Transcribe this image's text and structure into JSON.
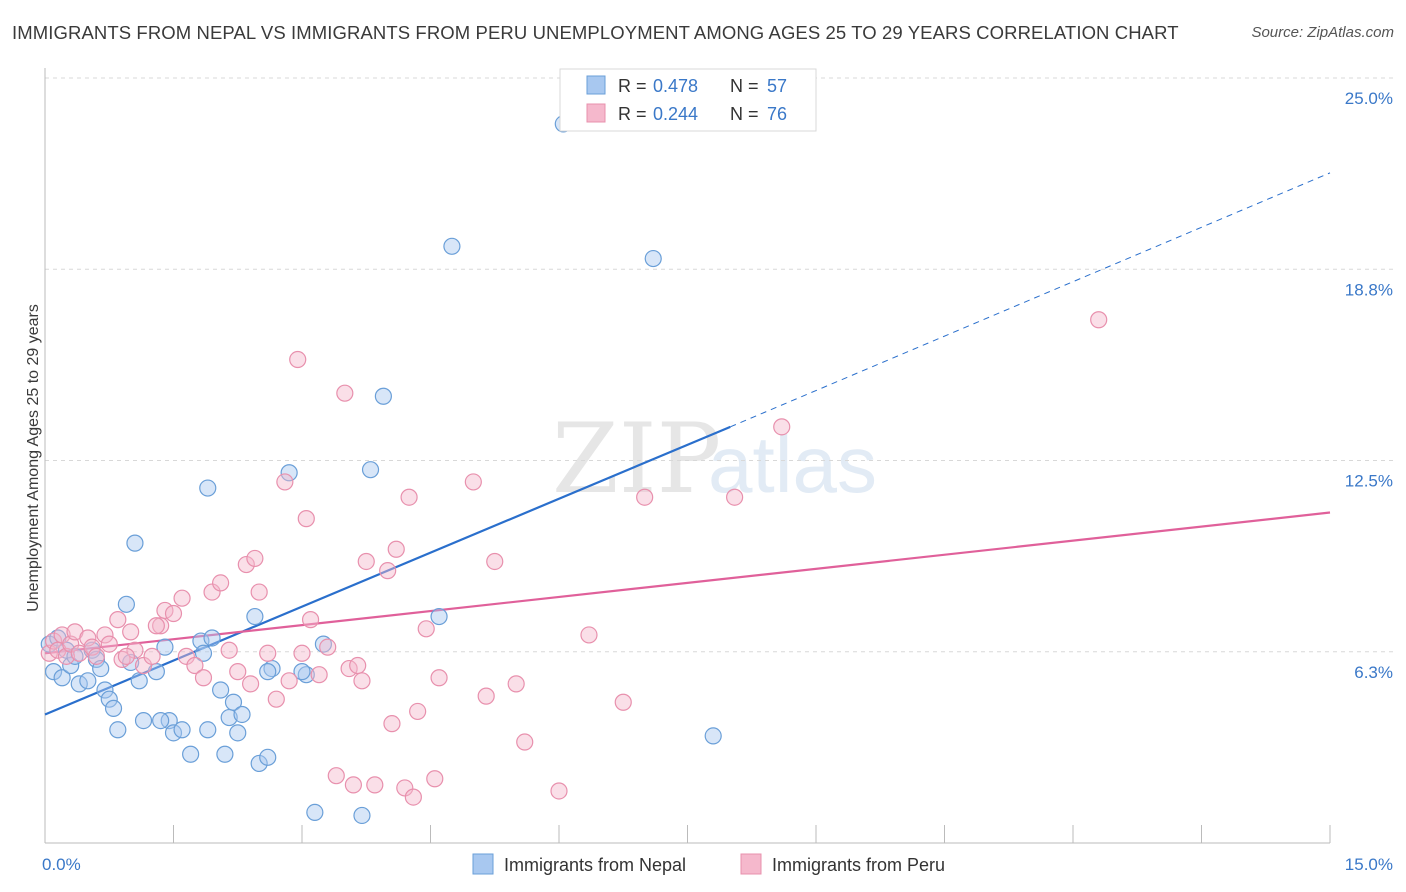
{
  "title": "IMMIGRANTS FROM NEPAL VS IMMIGRANTS FROM PERU UNEMPLOYMENT AMONG AGES 25 TO 29 YEARS CORRELATION CHART",
  "source": "Source: ZipAtlas.com",
  "watermark": {
    "zip": "ZIP",
    "atlas": "atlas"
  },
  "colors": {
    "nepal_fill": "#a8c8f0",
    "nepal_stroke": "#6a9fd8",
    "nepal_line": "#2a6fcc",
    "peru_fill": "#f5b8cc",
    "peru_stroke": "#e890ad",
    "peru_line": "#e0609a",
    "axis_text": "#3a78c8",
    "grid": "#d8d8d8"
  },
  "legend": {
    "rows": [
      {
        "r_label": "R = ",
        "r_value": "0.478",
        "n_label": "N = ",
        "n_value": "57"
      },
      {
        "r_label": "R = ",
        "r_value": "0.244",
        "n_label": "N = ",
        "n_value": "76"
      }
    ]
  },
  "chart_data": {
    "type": "scatter",
    "title": "IMMIGRANTS FROM NEPAL VS IMMIGRANTS FROM PERU UNEMPLOYMENT AMONG AGES 25 TO 29 YEARS CORRELATION CHART",
    "xlabel": "",
    "ylabel": "Unemployment Among Ages 25 to 29 years",
    "xlim": [
      0,
      15
    ],
    "ylim": [
      0,
      25
    ],
    "x_tick_labels": [
      "0.0%",
      "15.0%"
    ],
    "y_ticks": [
      6.25,
      12.5,
      18.75,
      25.0
    ],
    "y_tick_labels": [
      "6.3%",
      "12.5%",
      "18.8%",
      "25.0%"
    ],
    "grid": true,
    "legend_position": "top-center",
    "series": [
      {
        "name": "Immigrants from Nepal",
        "r": 0.478,
        "n": 57,
        "trend": {
          "x0": 0.0,
          "y0": 4.2,
          "x1": 8.0,
          "y1": 13.6,
          "dash_to_x": 15.0,
          "dash_to_y": 21.9
        },
        "points": [
          [
            0.05,
            6.5
          ],
          [
            0.1,
            5.6
          ],
          [
            0.15,
            6.7
          ],
          [
            0.2,
            5.4
          ],
          [
            0.25,
            6.3
          ],
          [
            0.3,
            5.8
          ],
          [
            0.35,
            6.1
          ],
          [
            0.4,
            5.2
          ],
          [
            0.5,
            5.3
          ],
          [
            0.55,
            6.3
          ],
          [
            0.6,
            6.0
          ],
          [
            0.65,
            5.7
          ],
          [
            0.7,
            5.0
          ],
          [
            0.75,
            4.7
          ],
          [
            0.8,
            4.4
          ],
          [
            0.85,
            3.7
          ],
          [
            0.95,
            7.8
          ],
          [
            1.0,
            5.9
          ],
          [
            1.05,
            9.8
          ],
          [
            1.1,
            5.3
          ],
          [
            1.15,
            4.0
          ],
          [
            1.3,
            5.6
          ],
          [
            1.4,
            6.4
          ],
          [
            1.45,
            4.0
          ],
          [
            1.5,
            3.6
          ],
          [
            1.6,
            3.7
          ],
          [
            1.7,
            2.9
          ],
          [
            1.82,
            6.6
          ],
          [
            1.85,
            6.2
          ],
          [
            1.9,
            3.7
          ],
          [
            1.95,
            6.7
          ],
          [
            2.05,
            5.0
          ],
          [
            2.1,
            2.9
          ],
          [
            2.15,
            4.1
          ],
          [
            2.2,
            4.6
          ],
          [
            2.25,
            3.6
          ],
          [
            2.3,
            4.2
          ],
          [
            2.45,
            7.4
          ],
          [
            2.5,
            2.6
          ],
          [
            2.6,
            2.8
          ],
          [
            2.65,
            5.7
          ],
          [
            2.85,
            12.1
          ],
          [
            3.05,
            5.5
          ],
          [
            3.15,
            1.0
          ],
          [
            3.25,
            6.5
          ],
          [
            3.7,
            0.9
          ],
          [
            3.8,
            12.2
          ],
          [
            3.95,
            14.6
          ],
          [
            4.6,
            7.4
          ],
          [
            4.75,
            19.5
          ],
          [
            6.05,
            23.5
          ],
          [
            7.1,
            19.1
          ],
          [
            7.8,
            3.5
          ],
          [
            1.9,
            11.6
          ],
          [
            2.6,
            5.6
          ],
          [
            3.0,
            5.6
          ],
          [
            1.35,
            4.0
          ]
        ]
      },
      {
        "name": "Immigrants from Peru",
        "r": 0.244,
        "n": 76,
        "trend": {
          "x0": 0.0,
          "y0": 6.2,
          "x1": 15.0,
          "y1": 10.8
        },
        "points": [
          [
            0.05,
            6.2
          ],
          [
            0.1,
            6.6
          ],
          [
            0.15,
            6.3
          ],
          [
            0.2,
            6.8
          ],
          [
            0.25,
            6.1
          ],
          [
            0.3,
            6.5
          ],
          [
            0.35,
            6.9
          ],
          [
            0.4,
            6.2
          ],
          [
            0.5,
            6.7
          ],
          [
            0.55,
            6.4
          ],
          [
            0.6,
            6.1
          ],
          [
            0.7,
            6.8
          ],
          [
            0.75,
            6.5
          ],
          [
            0.85,
            7.3
          ],
          [
            0.9,
            6.0
          ],
          [
            1.0,
            6.9
          ],
          [
            1.05,
            6.3
          ],
          [
            1.15,
            5.8
          ],
          [
            1.25,
            6.1
          ],
          [
            1.35,
            7.1
          ],
          [
            1.4,
            7.6
          ],
          [
            1.5,
            7.5
          ],
          [
            1.6,
            8.0
          ],
          [
            1.65,
            6.1
          ],
          [
            1.75,
            5.8
          ],
          [
            1.85,
            5.4
          ],
          [
            1.95,
            8.2
          ],
          [
            2.05,
            8.5
          ],
          [
            2.15,
            6.3
          ],
          [
            2.25,
            5.6
          ],
          [
            2.35,
            9.1
          ],
          [
            2.4,
            5.2
          ],
          [
            2.45,
            9.3
          ],
          [
            2.5,
            8.2
          ],
          [
            2.6,
            6.2
          ],
          [
            2.7,
            4.7
          ],
          [
            2.8,
            11.8
          ],
          [
            2.85,
            5.3
          ],
          [
            2.95,
            15.8
          ],
          [
            3.0,
            6.2
          ],
          [
            3.05,
            10.6
          ],
          [
            3.1,
            7.3
          ],
          [
            3.2,
            5.5
          ],
          [
            3.3,
            6.4
          ],
          [
            3.4,
            2.2
          ],
          [
            3.5,
            14.7
          ],
          [
            3.55,
            5.7
          ],
          [
            3.6,
            1.9
          ],
          [
            3.65,
            5.8
          ],
          [
            3.7,
            5.3
          ],
          [
            3.75,
            9.2
          ],
          [
            3.85,
            1.9
          ],
          [
            4.0,
            8.9
          ],
          [
            4.05,
            3.9
          ],
          [
            4.1,
            9.6
          ],
          [
            4.2,
            1.8
          ],
          [
            4.25,
            11.3
          ],
          [
            4.3,
            1.5
          ],
          [
            4.35,
            4.3
          ],
          [
            4.45,
            7.0
          ],
          [
            4.55,
            2.1
          ],
          [
            4.6,
            5.4
          ],
          [
            5.0,
            11.8
          ],
          [
            5.15,
            4.8
          ],
          [
            5.25,
            9.2
          ],
          [
            5.5,
            5.2
          ],
          [
            5.6,
            3.3
          ],
          [
            6.0,
            1.7
          ],
          [
            6.35,
            6.8
          ],
          [
            6.75,
            4.6
          ],
          [
            7.0,
            11.3
          ],
          [
            8.05,
            11.3
          ],
          [
            8.6,
            13.6
          ],
          [
            12.3,
            17.1
          ],
          [
            1.3,
            7.1
          ],
          [
            0.95,
            6.1
          ]
        ]
      }
    ]
  },
  "legend_bottom": [
    "Immigrants from Nepal",
    "Immigrants from Peru"
  ]
}
